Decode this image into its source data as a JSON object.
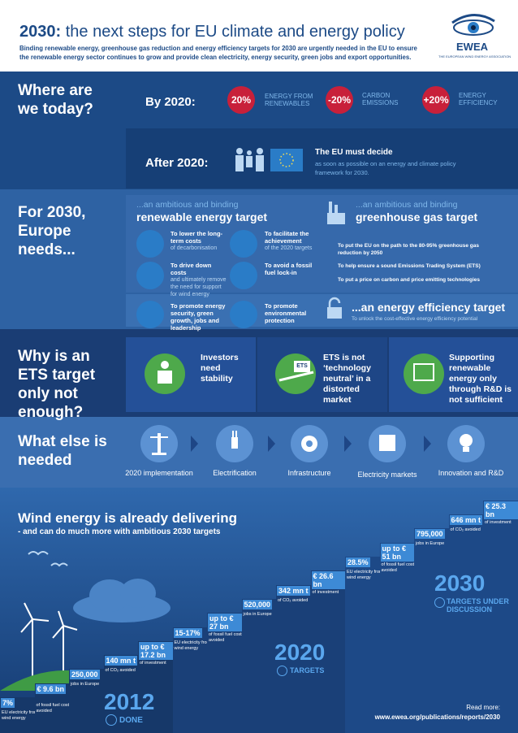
{
  "header": {
    "title_year": "2030:",
    "title": "the next steps for EU climate and energy policy",
    "subtitle": "Binding renewable energy, greenhouse gas reduction and energy efficiency targets for 2030 are urgently needed in the EU to ensure the renewable energy sector continues to grow and provide clean electricity, energy security, green jobs and export opportunities.",
    "logo": "EWEA",
    "logo_tagline": "THE EUROPEAN WIND ENERGY ASSOCIATION"
  },
  "today": {
    "heading": "Where are we today?",
    "by_label": "By 2020:",
    "targets": [
      {
        "value": "20%",
        "label": "ENERGY FROM RENEWABLES"
      },
      {
        "value": "-20%",
        "label": "CARBON EMISSIONS"
      },
      {
        "value": "+20%",
        "label": "ENERGY EFFICIENCY"
      }
    ],
    "after_label": "After 2020:",
    "decide_title": "The EU must decide",
    "decide_text": "as soon as possible on an energy and climate policy framework for 2030."
  },
  "needs": {
    "heading": "For 2030, Europe needs...",
    "renewable": {
      "kicker": "...an ambitious and binding",
      "title": "renewable energy target",
      "items": [
        {
          "strong": "To lower the long-term costs",
          "text": "of decarbonisation"
        },
        {
          "strong": "To facilitate the achievement",
          "text": "of the 2020 targets"
        },
        {
          "strong": "To drive down costs",
          "text": "and ultimately remove the need for support for wind energy"
        },
        {
          "strong": "To avoid a fossil fuel lock-in"
        },
        {
          "strong": "To promote energy security, green growth, jobs and leadership"
        },
        {
          "strong": "To promote environmental protection"
        }
      ]
    },
    "ghg": {
      "kicker": "...an ambitious and binding",
      "title": "greenhouse gas target",
      "items": [
        "To put the EU on the path to the 80-95% greenhouse gas reduction by 2050",
        "To help ensure a sound Emissions Trading System (ETS)",
        "To put a price on carbon and price emitting technologies"
      ]
    },
    "efficiency": {
      "title": "...an energy efficiency target",
      "text": "To unlock the cost-effective energy efficiency potential"
    }
  },
  "ets": {
    "heading": "Why is an ETS target only not enough?",
    "icon_label": "ETS",
    "columns": [
      "Investors need stability",
      "ETS is not ‘technology neutral’ in a distorted market",
      "Supporting renewable energy only through R&D is not sufficient"
    ]
  },
  "what_else": {
    "heading": "What else is needed",
    "items": [
      "2020 implementation",
      "Electrification",
      "Infrastructure",
      "Electricity markets",
      "Innovation and R&D"
    ]
  },
  "wind": {
    "heading": "Wind energy is already delivering",
    "subheading": "- and can do much more with ambitious 2030 targets",
    "steps": [
      {
        "value": "7%",
        "label": "EU electricity from wind energy"
      },
      {
        "value": "€ 9.6 bn",
        "label": "of fossil fuel costs avoided"
      },
      {
        "value": "250,000",
        "label": "jobs in Europe"
      },
      {
        "value": "140 mn t",
        "label": "of CO₂ avoided"
      },
      {
        "value": "up to € 17.2 bn",
        "label": "of investment"
      },
      {
        "value": "15-17%",
        "label": "EU electricity from wind energy"
      },
      {
        "value": "up to € 27 bn",
        "label": "of fossil fuel costs avoided"
      },
      {
        "value": "520,000",
        "label": "jobs in Europe"
      },
      {
        "value": "342 mn t",
        "label": "of CO₂ avoided"
      },
      {
        "value": "€ 26.6 bn",
        "label": "of investment"
      },
      {
        "value": "28.5%",
        "label": "EU electricity from wind energy"
      },
      {
        "value": "up to € 51 bn",
        "label": "of fossil fuel costs avoided"
      },
      {
        "value": "795,000",
        "label": "jobs in Europe"
      },
      {
        "value": "646 mn t",
        "label": "of CO₂ avoided"
      },
      {
        "value": "€ 25.3 bn",
        "label": "of investment"
      }
    ],
    "milestones": [
      {
        "year": "2012",
        "label": "DONE"
      },
      {
        "year": "2020",
        "label": "TARGETS"
      },
      {
        "year": "2030",
        "label": "TARGETS UNDER DISCUSSION"
      }
    ],
    "read_more": "Read more:",
    "url": "www.ewea.org/publications/reports/2030"
  }
}
